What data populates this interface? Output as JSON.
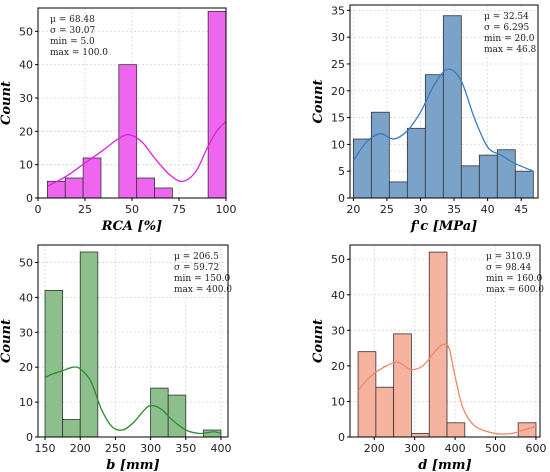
{
  "chart_data": [
    {
      "type": "bar",
      "subtype": "histogram",
      "color": "#ee66ee",
      "kde_color": "#dd22dd",
      "xlim": [
        0,
        100
      ],
      "ylim": [
        0,
        57
      ],
      "xticks": [
        0,
        25,
        50,
        75,
        100
      ],
      "yticks": [
        0,
        10,
        20,
        30,
        40,
        50
      ],
      "xlabel_main": "RCA",
      "xlabel_unit": " [%]",
      "ylabel": "Count",
      "bins": [
        {
          "x0": 5.0,
          "x1": 14.5,
          "count": 5
        },
        {
          "x0": 14.5,
          "x1": 24.0,
          "count": 6
        },
        {
          "x0": 24.0,
          "x1": 33.5,
          "count": 12
        },
        {
          "x0": 33.5,
          "x1": 43.0,
          "count": 0
        },
        {
          "x0": 43.0,
          "x1": 52.5,
          "count": 40
        },
        {
          "x0": 52.5,
          "x1": 62.0,
          "count": 6
        },
        {
          "x0": 62.0,
          "x1": 71.5,
          "count": 3
        },
        {
          "x0": 71.5,
          "x1": 81.0,
          "count": 0
        },
        {
          "x0": 81.0,
          "x1": 90.5,
          "count": 0
        },
        {
          "x0": 90.5,
          "x1": 100.0,
          "count": 56
        }
      ],
      "kde": [
        [
          5,
          3.5
        ],
        [
          15,
          6.5
        ],
        [
          25,
          10.5
        ],
        [
          35,
          14.5
        ],
        [
          42,
          17.5
        ],
        [
          48,
          19
        ],
        [
          55,
          17
        ],
        [
          62,
          12
        ],
        [
          70,
          7
        ],
        [
          77,
          5
        ],
        [
          84,
          8
        ],
        [
          90,
          15
        ],
        [
          95,
          20
        ],
        [
          100,
          23
        ]
      ],
      "stats": [
        "μ = 68.48",
        "σ = 30.07",
        "min = 5.0",
        "max = 100.0"
      ],
      "stats_pos": "top-left"
    },
    {
      "type": "bar",
      "subtype": "histogram",
      "color": "#7ba3c9",
      "kde_color": "#3a7bbf",
      "xlim": [
        19.5,
        47.5
      ],
      "ylim": [
        0,
        36
      ],
      "xticks": [
        20,
        25,
        30,
        35,
        40,
        45
      ],
      "yticks": [
        0,
        5,
        10,
        15,
        20,
        25,
        30,
        35
      ],
      "xlabel_main": "f'c",
      "xlabel_unit": " [MPa]",
      "ylabel": "Count",
      "bins": [
        {
          "x0": 20.0,
          "x1": 22.68,
          "count": 11
        },
        {
          "x0": 22.68,
          "x1": 25.36,
          "count": 16
        },
        {
          "x0": 25.36,
          "x1": 28.04,
          "count": 3
        },
        {
          "x0": 28.04,
          "x1": 30.72,
          "count": 13
        },
        {
          "x0": 30.72,
          "x1": 33.4,
          "count": 23
        },
        {
          "x0": 33.4,
          "x1": 36.08,
          "count": 34
        },
        {
          "x0": 36.08,
          "x1": 38.76,
          "count": 6
        },
        {
          "x0": 38.76,
          "x1": 41.44,
          "count": 8
        },
        {
          "x0": 41.44,
          "x1": 44.12,
          "count": 9
        },
        {
          "x0": 44.12,
          "x1": 46.8,
          "count": 5
        }
      ],
      "kde": [
        [
          20,
          7
        ],
        [
          22,
          10.5
        ],
        [
          24,
          12
        ],
        [
          26,
          11
        ],
        [
          28,
          12.5
        ],
        [
          30,
          16
        ],
        [
          32,
          21
        ],
        [
          34,
          24
        ],
        [
          36,
          22
        ],
        [
          38,
          15
        ],
        [
          40,
          9.5
        ],
        [
          42,
          8
        ],
        [
          44,
          6.5
        ],
        [
          46.8,
          5
        ]
      ],
      "stats": [
        "μ = 32.54",
        "σ = 6.295",
        "min = 20.0",
        "max = 46.8"
      ],
      "stats_pos": "top-right"
    },
    {
      "type": "bar",
      "subtype": "histogram",
      "color": "#8cbf8c",
      "kde_color": "#2e8b2e",
      "xlim": [
        140,
        410
      ],
      "ylim": [
        0,
        55
      ],
      "xticks": [
        150,
        200,
        250,
        300,
        350,
        400
      ],
      "yticks": [
        0,
        10,
        20,
        30,
        40,
        50
      ],
      "xlabel_main": "b",
      "xlabel_unit": " [mm]",
      "ylabel": "Count",
      "bins": [
        {
          "x0": 150,
          "x1": 175,
          "count": 42
        },
        {
          "x0": 175,
          "x1": 200,
          "count": 5
        },
        {
          "x0": 200,
          "x1": 225,
          "count": 53
        },
        {
          "x0": 225,
          "x1": 250,
          "count": 0
        },
        {
          "x0": 250,
          "x1": 275,
          "count": 0
        },
        {
          "x0": 275,
          "x1": 300,
          "count": 0
        },
        {
          "x0": 300,
          "x1": 325,
          "count": 14
        },
        {
          "x0": 325,
          "x1": 350,
          "count": 12
        },
        {
          "x0": 350,
          "x1": 375,
          "count": 0
        },
        {
          "x0": 375,
          "x1": 400,
          "count": 2
        }
      ],
      "kde": [
        [
          150,
          17
        ],
        [
          160,
          18
        ],
        [
          175,
          19
        ],
        [
          190,
          20
        ],
        [
          200,
          19.5
        ],
        [
          215,
          16
        ],
        [
          230,
          8
        ],
        [
          245,
          3
        ],
        [
          260,
          2
        ],
        [
          275,
          4
        ],
        [
          290,
          7.5
        ],
        [
          300,
          9
        ],
        [
          315,
          8
        ],
        [
          330,
          5
        ],
        [
          350,
          2
        ],
        [
          370,
          1
        ],
        [
          390,
          1.5
        ],
        [
          400,
          1
        ]
      ],
      "stats": [
        "μ = 206.5",
        "σ = 59.72",
        "min = 150.0",
        "max = 400.0"
      ],
      "stats_pos": "top-right"
    },
    {
      "type": "bar",
      "subtype": "histogram",
      "color": "#f5b3a0",
      "kde_color": "#ee8866",
      "xlim": [
        140,
        610
      ],
      "ylim": [
        0,
        54
      ],
      "xticks": [
        200,
        300,
        400,
        500,
        600
      ],
      "yticks": [
        0,
        10,
        20,
        30,
        40,
        50
      ],
      "xlabel_main": "d",
      "xlabel_unit": " [mm]",
      "ylabel": "Count",
      "bins": [
        {
          "x0": 160,
          "x1": 204,
          "count": 24
        },
        {
          "x0": 204,
          "x1": 248,
          "count": 14
        },
        {
          "x0": 248,
          "x1": 292,
          "count": 29
        },
        {
          "x0": 292,
          "x1": 336,
          "count": 1
        },
        {
          "x0": 336,
          "x1": 380,
          "count": 52
        },
        {
          "x0": 380,
          "x1": 424,
          "count": 4
        },
        {
          "x0": 424,
          "x1": 468,
          "count": 0
        },
        {
          "x0": 468,
          "x1": 512,
          "count": 0
        },
        {
          "x0": 512,
          "x1": 556,
          "count": 0
        },
        {
          "x0": 556,
          "x1": 600,
          "count": 4
        }
      ],
      "kde": [
        [
          160,
          13
        ],
        [
          190,
          17
        ],
        [
          230,
          20
        ],
        [
          260,
          21
        ],
        [
          290,
          19
        ],
        [
          320,
          20
        ],
        [
          350,
          24
        ],
        [
          370,
          26
        ],
        [
          385,
          25
        ],
        [
          400,
          17
        ],
        [
          420,
          8
        ],
        [
          450,
          3
        ],
        [
          500,
          1
        ],
        [
          540,
          1
        ],
        [
          570,
          2
        ],
        [
          600,
          3
        ]
      ],
      "stats": [
        "μ = 310.9",
        "σ = 98.44",
        "min = 160.0",
        "max = 600.0"
      ],
      "stats_pos": "top-right"
    }
  ]
}
